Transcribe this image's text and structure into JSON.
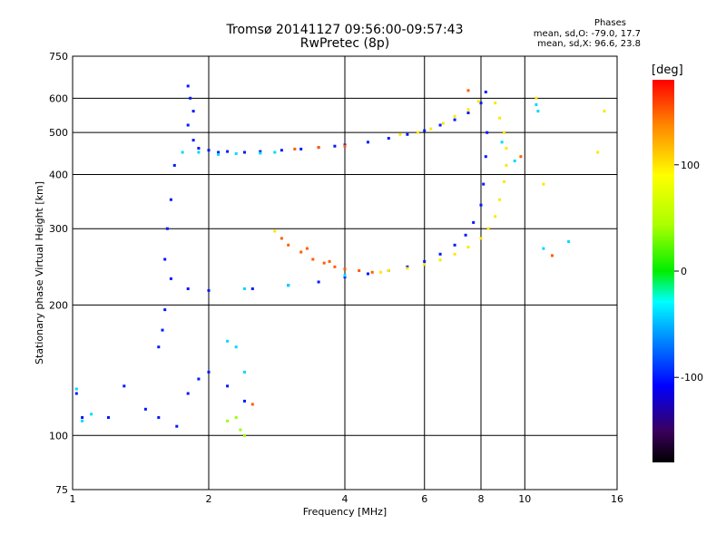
{
  "header": {
    "title_line1": "Tromsø 20141127 09:56:00-09:57:43",
    "title_line2": "RwPretec (8p)"
  },
  "stats": {
    "label": "Phases",
    "o_mode": "mean, sd,O: -79.0, 17.7",
    "x_mode": "mean, sd,X:  96.6, 23.8"
  },
  "colorbar": {
    "unit": "[deg]",
    "ticks": [
      "100",
      "0",
      "-100"
    ],
    "tick_values": [
      100,
      0,
      -100
    ],
    "range": [
      -180,
      180
    ]
  },
  "chart_data": {
    "type": "scatter",
    "xlabel": "Frequency [MHz]",
    "ylabel": "Stationary phase Virtual Height [km]",
    "xscale": "log",
    "yscale": "log",
    "xlim": [
      1,
      16
    ],
    "ylim": [
      75,
      750
    ],
    "x_ticks": [
      1,
      2,
      4,
      6,
      8,
      10,
      16
    ],
    "y_ticks": [
      75,
      100,
      200,
      300,
      400,
      500,
      600,
      750
    ],
    "x_tick_labels": [
      "1",
      "2",
      "4",
      "6",
      "8",
      "10",
      "16"
    ],
    "y_tick_labels": [
      "75",
      "100",
      "200",
      "300",
      "400",
      "500",
      "600",
      "750"
    ],
    "grid": true,
    "color_variable": "phase [deg]",
    "series": [
      {
        "points": [
          [
            1.8,
            640
          ],
          [
            1.82,
            600
          ],
          [
            1.85,
            560
          ],
          [
            1.8,
            520
          ],
          [
            1.85,
            480
          ],
          [
            1.9,
            460
          ],
          [
            2.0,
            455
          ],
          [
            2.1,
            450
          ],
          [
            2.2,
            452
          ],
          [
            2.4,
            450
          ],
          [
            2.6,
            452
          ],
          [
            2.9,
            455
          ],
          [
            3.2,
            458
          ],
          [
            3.5,
            462
          ],
          [
            3.8,
            465
          ],
          [
            4.0,
            468
          ],
          [
            4.5,
            475
          ],
          [
            5.0,
            485
          ],
          [
            5.5,
            495
          ],
          [
            6.0,
            505
          ],
          [
            6.5,
            520
          ],
          [
            7.0,
            535
          ],
          [
            7.5,
            555
          ],
          [
            8.0,
            585
          ],
          [
            8.2,
            620
          ],
          [
            8.25,
            500
          ],
          [
            8.2,
            440
          ],
          [
            8.1,
            380
          ],
          [
            8.0,
            340
          ],
          [
            7.7,
            310
          ],
          [
            7.4,
            290
          ],
          [
            7.0,
            275
          ],
          [
            6.5,
            262
          ],
          [
            6.0,
            252
          ],
          [
            5.5,
            245
          ],
          [
            5.0,
            240
          ],
          [
            4.5,
            236
          ],
          [
            4.0,
            232
          ],
          [
            3.5,
            226
          ],
          [
            3.0,
            222
          ],
          [
            2.5,
            218
          ],
          [
            2.0,
            216
          ],
          [
            1.8,
            218
          ],
          [
            1.65,
            230
          ],
          [
            1.6,
            255
          ],
          [
            1.62,
            300
          ],
          [
            1.65,
            350
          ],
          [
            1.68,
            420
          ],
          [
            1.55,
            160
          ],
          [
            1.58,
            175
          ],
          [
            1.6,
            195
          ],
          [
            1.45,
            115
          ],
          [
            1.55,
            110
          ],
          [
            1.7,
            105
          ],
          [
            1.8,
            125
          ],
          [
            1.9,
            135
          ],
          [
            2.0,
            140
          ],
          [
            2.2,
            130
          ],
          [
            2.4,
            120
          ],
          [
            1.3,
            130
          ],
          [
            1.2,
            110
          ],
          [
            1.05,
            110
          ],
          [
            1.02,
            125
          ]
        ],
        "phase": -100
      },
      {
        "points": [
          [
            1.9,
            450
          ],
          [
            2.1,
            445
          ],
          [
            2.3,
            447
          ],
          [
            2.6,
            448
          ],
          [
            2.8,
            450
          ],
          [
            1.75,
            450
          ],
          [
            2.4,
            218
          ],
          [
            3.0,
            222
          ],
          [
            4.0,
            234
          ],
          [
            1.05,
            108
          ],
          [
            1.1,
            112
          ],
          [
            1.02,
            128
          ],
          [
            2.2,
            165
          ],
          [
            2.3,
            160
          ],
          [
            2.4,
            140
          ],
          [
            10.6,
            580
          ],
          [
            10.7,
            560
          ],
          [
            9.5,
            430
          ],
          [
            12.5,
            280
          ],
          [
            11.0,
            270
          ],
          [
            8.9,
            475
          ]
        ],
        "phase": -40
      },
      {
        "points": [
          [
            5.3,
            495
          ],
          [
            5.8,
            500
          ],
          [
            6.2,
            510
          ],
          [
            6.6,
            525
          ],
          [
            7.0,
            545
          ],
          [
            7.5,
            565
          ],
          [
            7.9,
            590
          ],
          [
            8.6,
            585
          ],
          [
            8.8,
            540
          ],
          [
            9.0,
            500
          ],
          [
            9.1,
            460
          ],
          [
            9.1,
            420
          ],
          [
            9.0,
            385
          ],
          [
            8.8,
            350
          ],
          [
            8.6,
            320
          ],
          [
            8.3,
            300
          ],
          [
            8.0,
            285
          ],
          [
            7.5,
            272
          ],
          [
            7.0,
            262
          ],
          [
            6.5,
            254
          ],
          [
            6.0,
            248
          ],
          [
            5.5,
            243
          ],
          [
            5.0,
            240
          ],
          [
            4.8,
            238
          ],
          [
            2.8,
            296
          ],
          [
            10.6,
            600
          ],
          [
            11.0,
            380
          ],
          [
            15.0,
            560
          ],
          [
            14.5,
            450
          ]
        ],
        "phase": 100
      },
      {
        "points": [
          [
            2.9,
            285
          ],
          [
            3.0,
            275
          ],
          [
            3.2,
            265
          ],
          [
            3.4,
            255
          ],
          [
            3.6,
            250
          ],
          [
            3.8,
            245
          ],
          [
            4.0,
            242
          ],
          [
            4.3,
            240
          ],
          [
            4.6,
            238
          ],
          [
            3.3,
            270
          ],
          [
            3.7,
            252
          ],
          [
            4.0,
            465
          ],
          [
            3.5,
            462
          ],
          [
            3.1,
            458
          ],
          [
            2.5,
            118
          ],
          [
            7.5,
            625
          ],
          [
            11.5,
            260
          ],
          [
            9.8,
            440
          ]
        ],
        "phase": 150
      },
      {
        "points": [
          [
            2.3,
            110
          ],
          [
            2.35,
            103
          ],
          [
            2.2,
            108
          ],
          [
            2.4,
            100
          ]
        ],
        "phase": 40
      }
    ]
  }
}
